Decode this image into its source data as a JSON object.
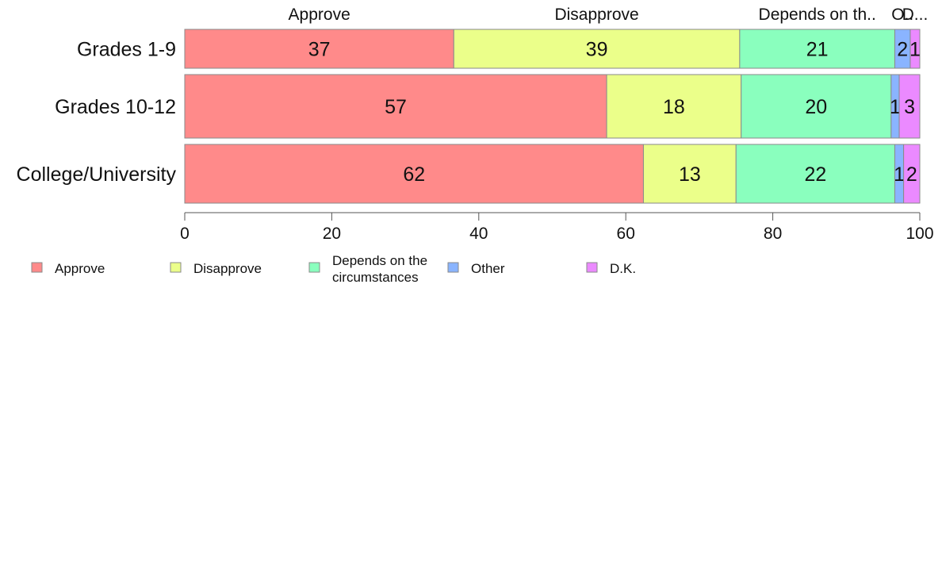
{
  "chart_data": {
    "type": "bar",
    "orientation": "horizontal",
    "stacked": true,
    "categories": [
      "Grades 1-9",
      "Grades 10-12",
      "College/University"
    ],
    "series": [
      {
        "name": "Approve",
        "color": "#ff8a8a",
        "values": [
          36.6,
          57.4,
          62.4
        ]
      },
      {
        "name": "Disapprove",
        "color": "#ebff8a",
        "values": [
          38.9,
          18.3,
          12.6
        ]
      },
      {
        "name": "Depends on the circumstances",
        "color": "#8affbe",
        "values": [
          21.1,
          20.4,
          21.6
        ]
      },
      {
        "name": "Other",
        "color": "#8ab4ff",
        "values": [
          2.1,
          1.1,
          1.2
        ]
      },
      {
        "name": "D.K.",
        "color": "#eb8aff",
        "values": [
          1.3,
          2.8,
          2.2
        ]
      }
    ],
    "data_labels": [
      [
        "37",
        "39",
        "21",
        "2",
        "1"
      ],
      [
        "57",
        "18",
        "20",
        "1",
        "3"
      ],
      [
        "62",
        "13",
        "22",
        "1",
        "2"
      ]
    ],
    "top_labels": [
      "Approve",
      "Disapprove",
      "Depends on th..",
      "O..",
      "D..."
    ],
    "legend_labels": [
      "Approve",
      "Disapprove",
      "Depends on the circumstances",
      "Other",
      "D.K."
    ],
    "xlim": [
      0,
      100
    ],
    "xticks": [
      "0",
      "20",
      "40",
      "60",
      "80",
      "100"
    ],
    "grid": false,
    "legend_position": "bottom-left"
  }
}
